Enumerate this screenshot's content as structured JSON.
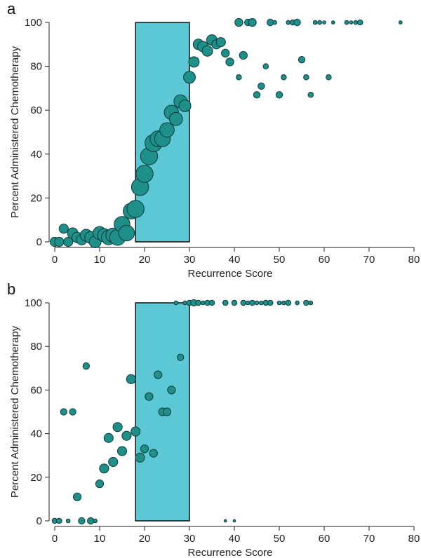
{
  "colors": {
    "point_fill": "#1f8f8a",
    "point_stroke": "#0e3b3a",
    "band_fill": "#5cc8d6",
    "axis": "#222222"
  },
  "chart_data": [
    {
      "type": "scatter",
      "panel_label": "a",
      "xlabel": "Recurrence Score",
      "ylabel": "Percent Administered Chemotherapy",
      "xlim": [
        0,
        80
      ],
      "ylim": [
        0,
        100
      ],
      "xticks": [
        0,
        10,
        20,
        30,
        40,
        50,
        60,
        70,
        80
      ],
      "yticks": [
        0,
        20,
        40,
        60,
        80,
        100
      ],
      "shaded_band": [
        18,
        30
      ],
      "grid": false,
      "points": [
        {
          "x": 0,
          "y": 0,
          "size": 7
        },
        {
          "x": 1,
          "y": 0,
          "size": 7
        },
        {
          "x": 2,
          "y": 6,
          "size": 7
        },
        {
          "x": 3,
          "y": 0,
          "size": 7
        },
        {
          "x": 4,
          "y": 4,
          "size": 8
        },
        {
          "x": 5,
          "y": 2,
          "size": 8
        },
        {
          "x": 6,
          "y": 1,
          "size": 8
        },
        {
          "x": 7,
          "y": 3,
          "size": 9
        },
        {
          "x": 8,
          "y": 2,
          "size": 9
        },
        {
          "x": 9,
          "y": 0,
          "size": 9
        },
        {
          "x": 10,
          "y": 4,
          "size": 10
        },
        {
          "x": 11,
          "y": 3,
          "size": 10
        },
        {
          "x": 12,
          "y": 2,
          "size": 11
        },
        {
          "x": 13,
          "y": 3,
          "size": 11
        },
        {
          "x": 14,
          "y": 2,
          "size": 12
        },
        {
          "x": 15,
          "y": 8,
          "size": 12
        },
        {
          "x": 16,
          "y": 4,
          "size": 12
        },
        {
          "x": 17,
          "y": 14,
          "size": 12
        },
        {
          "x": 18,
          "y": 15,
          "size": 13
        },
        {
          "x": 19,
          "y": 25,
          "size": 13
        },
        {
          "x": 20,
          "y": 31,
          "size": 13
        },
        {
          "x": 21,
          "y": 39,
          "size": 13
        },
        {
          "x": 22,
          "y": 45,
          "size": 13
        },
        {
          "x": 23,
          "y": 47,
          "size": 12
        },
        {
          "x": 24,
          "y": 47,
          "size": 12
        },
        {
          "x": 25,
          "y": 51,
          "size": 11
        },
        {
          "x": 26,
          "y": 59,
          "size": 11
        },
        {
          "x": 27,
          "y": 56,
          "size": 10
        },
        {
          "x": 28,
          "y": 64,
          "size": 10
        },
        {
          "x": 29,
          "y": 62,
          "size": 9
        },
        {
          "x": 30,
          "y": 75,
          "size": 9
        },
        {
          "x": 31,
          "y": 82,
          "size": 8
        },
        {
          "x": 32,
          "y": 90,
          "size": 8
        },
        {
          "x": 33,
          "y": 89,
          "size": 8
        },
        {
          "x": 34,
          "y": 87,
          "size": 8
        },
        {
          "x": 35,
          "y": 92,
          "size": 8
        },
        {
          "x": 36,
          "y": 90,
          "size": 7
        },
        {
          "x": 37,
          "y": 91,
          "size": 7
        },
        {
          "x": 38,
          "y": 86,
          "size": 6
        },
        {
          "x": 39,
          "y": 82,
          "size": 6
        },
        {
          "x": 41,
          "y": 100,
          "size": 6
        },
        {
          "x": 41,
          "y": 75,
          "size": 4
        },
        {
          "x": 42,
          "y": 85,
          "size": 6
        },
        {
          "x": 43,
          "y": 100,
          "size": 5
        },
        {
          "x": 44,
          "y": 100,
          "size": 6
        },
        {
          "x": 45,
          "y": 67,
          "size": 5
        },
        {
          "x": 46,
          "y": 71,
          "size": 5
        },
        {
          "x": 47,
          "y": 80,
          "size": 4
        },
        {
          "x": 48,
          "y": 100,
          "size": 5
        },
        {
          "x": 49,
          "y": 100,
          "size": 3
        },
        {
          "x": 50,
          "y": 67,
          "size": 5
        },
        {
          "x": 51,
          "y": 75,
          "size": 4
        },
        {
          "x": 52,
          "y": 100,
          "size": 3
        },
        {
          "x": 53,
          "y": 100,
          "size": 4
        },
        {
          "x": 54,
          "y": 100,
          "size": 5
        },
        {
          "x": 55,
          "y": 83,
          "size": 5
        },
        {
          "x": 56,
          "y": 75,
          "size": 4
        },
        {
          "x": 57,
          "y": 67,
          "size": 4
        },
        {
          "x": 58,
          "y": 100,
          "size": 3
        },
        {
          "x": 59,
          "y": 100,
          "size": 3
        },
        {
          "x": 60,
          "y": 100,
          "size": 2.5
        },
        {
          "x": 61,
          "y": 75,
          "size": 4
        },
        {
          "x": 62,
          "y": 100,
          "size": 2.5
        },
        {
          "x": 65,
          "y": 100,
          "size": 3
        },
        {
          "x": 66,
          "y": 100,
          "size": 2.5
        },
        {
          "x": 67,
          "y": 100,
          "size": 3
        },
        {
          "x": 68,
          "y": 100,
          "size": 4
        },
        {
          "x": 77,
          "y": 100,
          "size": 2.5
        }
      ]
    },
    {
      "type": "scatter",
      "panel_label": "b",
      "xlabel": "Recurrence Score",
      "ylabel": "Percent Administered Chemotherapy",
      "xlim": [
        0,
        80
      ],
      "ylim": [
        0,
        100
      ],
      "xticks": [
        0,
        10,
        20,
        30,
        40,
        50,
        60,
        70,
        80
      ],
      "yticks": [
        0,
        20,
        40,
        60,
        80,
        100
      ],
      "shaded_band": [
        18,
        30
      ],
      "grid": false,
      "points": [
        {
          "x": 0,
          "y": 0,
          "size": 4
        },
        {
          "x": 1,
          "y": 0,
          "size": 4
        },
        {
          "x": 2,
          "y": 50,
          "size": 5
        },
        {
          "x": 3,
          "y": 0,
          "size": 3
        },
        {
          "x": 4,
          "y": 50,
          "size": 5
        },
        {
          "x": 5,
          "y": 11,
          "size": 6
        },
        {
          "x": 6,
          "y": 0,
          "size": 5
        },
        {
          "x": 7,
          "y": 71,
          "size": 5
        },
        {
          "x": 8,
          "y": 0,
          "size": 5
        },
        {
          "x": 9,
          "y": 0,
          "size": 3
        },
        {
          "x": 10,
          "y": 17,
          "size": 6
        },
        {
          "x": 11,
          "y": 24,
          "size": 7
        },
        {
          "x": 12,
          "y": 38,
          "size": 7
        },
        {
          "x": 13,
          "y": 27,
          "size": 7
        },
        {
          "x": 14,
          "y": 43,
          "size": 7
        },
        {
          "x": 15,
          "y": 32,
          "size": 7
        },
        {
          "x": 16,
          "y": 39,
          "size": 7
        },
        {
          "x": 17,
          "y": 65,
          "size": 7
        },
        {
          "x": 18,
          "y": 41,
          "size": 7
        },
        {
          "x": 19,
          "y": 29,
          "size": 7
        },
        {
          "x": 20,
          "y": 33,
          "size": 6
        },
        {
          "x": 21,
          "y": 57,
          "size": 6
        },
        {
          "x": 22,
          "y": 31,
          "size": 6
        },
        {
          "x": 23,
          "y": 67,
          "size": 6
        },
        {
          "x": 24,
          "y": 50,
          "size": 6
        },
        {
          "x": 25,
          "y": 50,
          "size": 6
        },
        {
          "x": 26,
          "y": 60,
          "size": 6
        },
        {
          "x": 27,
          "y": 100,
          "size": 3
        },
        {
          "x": 28,
          "y": 75,
          "size": 5
        },
        {
          "x": 29,
          "y": 100,
          "size": 3
        },
        {
          "x": 30,
          "y": 100,
          "size": 4
        },
        {
          "x": 31,
          "y": 100,
          "size": 5
        },
        {
          "x": 32,
          "y": 100,
          "size": 4
        },
        {
          "x": 33,
          "y": 100,
          "size": 3
        },
        {
          "x": 34,
          "y": 100,
          "size": 4
        },
        {
          "x": 35,
          "y": 100,
          "size": 4
        },
        {
          "x": 38,
          "y": 100,
          "size": 4
        },
        {
          "x": 38,
          "y": 0,
          "size": 2
        },
        {
          "x": 40,
          "y": 100,
          "size": 4
        },
        {
          "x": 40,
          "y": 0,
          "size": 2
        },
        {
          "x": 42,
          "y": 100,
          "size": 4
        },
        {
          "x": 43,
          "y": 100,
          "size": 3
        },
        {
          "x": 44,
          "y": 100,
          "size": 4
        },
        {
          "x": 45,
          "y": 100,
          "size": 3
        },
        {
          "x": 46,
          "y": 100,
          "size": 3
        },
        {
          "x": 47,
          "y": 100,
          "size": 4
        },
        {
          "x": 48,
          "y": 100,
          "size": 4
        },
        {
          "x": 50,
          "y": 100,
          "size": 3
        },
        {
          "x": 51,
          "y": 100,
          "size": 3
        },
        {
          "x": 52,
          "y": 100,
          "size": 4
        },
        {
          "x": 54,
          "y": 100,
          "size": 3
        },
        {
          "x": 56,
          "y": 100,
          "size": 4
        },
        {
          "x": 57,
          "y": 100,
          "size": 3
        }
      ]
    }
  ]
}
